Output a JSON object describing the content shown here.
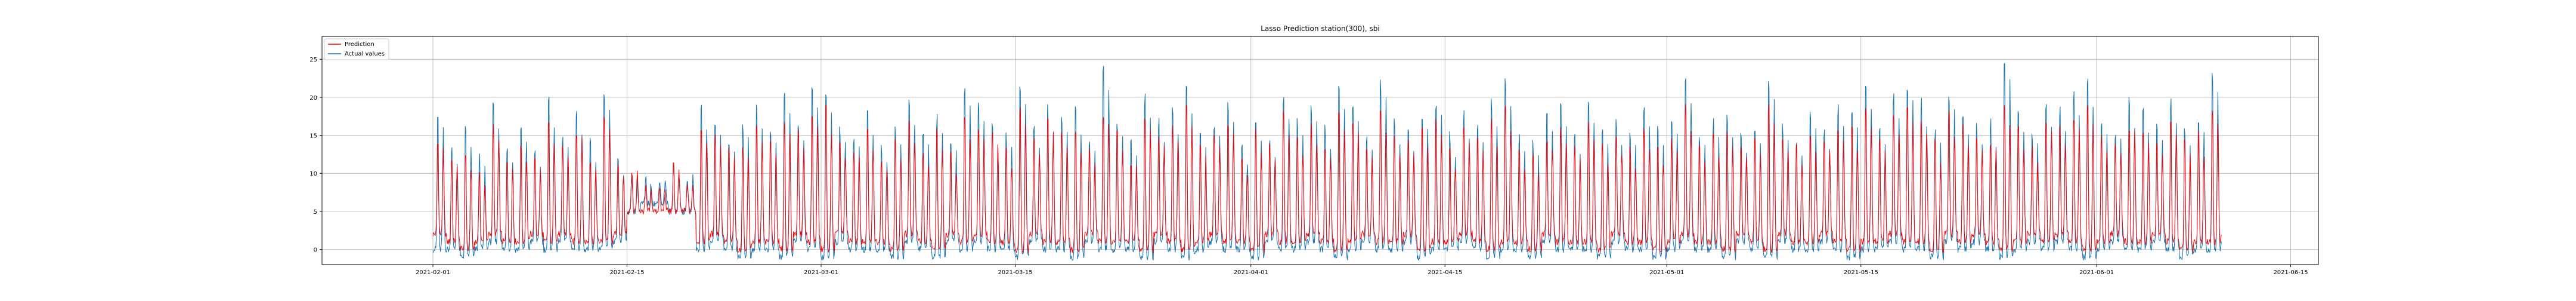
{
  "chart_data": {
    "type": "line",
    "title": "Lasso Prediction  station(300), sbi",
    "xlabel": "",
    "ylabel": "",
    "x_range": [
      "2021-01-24",
      "2021-06-17"
    ],
    "ylim": [
      -2,
      28
    ],
    "grid": true,
    "legend_placement": "top-left",
    "x_ticks": [
      "2021-02-01",
      "2021-02-15",
      "2021-03-01",
      "2021-03-15",
      "2021-04-01",
      "2021-04-15",
      "2021-05-01",
      "2021-05-15",
      "2021-06-01",
      "2021-06-15"
    ],
    "y_ticks": [
      0,
      5,
      10,
      15,
      20,
      25
    ],
    "data_start": "2021-02-01",
    "data_end": "2021-06-10",
    "series": [
      {
        "name": "Prediction",
        "color": "#ff0000",
        "daily_peak": [
          15,
          13,
          14,
          11,
          17,
          13,
          15,
          12,
          18,
          14,
          17,
          13,
          19,
          12,
          11,
          8,
          8,
          11,
          9,
          18,
          16,
          14,
          15,
          17,
          15,
          18,
          16,
          19,
          20,
          15,
          14,
          17,
          13,
          15,
          18,
          14,
          17,
          13,
          19,
          17,
          16,
          14,
          20,
          15,
          18,
          16,
          17,
          14,
          20,
          16,
          13,
          19,
          16,
          17,
          20,
          14,
          16,
          18,
          13,
          17,
          14,
          19,
          16,
          17,
          15,
          20,
          18,
          14,
          20,
          16,
          15,
          17,
          18,
          14,
          17,
          15,
          18,
          20,
          14,
          13,
          16,
          17,
          14,
          18,
          15,
          16,
          14,
          17,
          15,
          15,
          20,
          14,
          16,
          16,
          14,
          15,
          20,
          15,
          14,
          16,
          15,
          17,
          17,
          20,
          15,
          19,
          20,
          18,
          15,
          19,
          17,
          15,
          15,
          20,
          17,
          14,
          18,
          17,
          19,
          20,
          16,
          15,
          18,
          17,
          15,
          18,
          15,
          16,
          20,
          15,
          17
        ],
        "daily_trough": [
          2,
          1,
          0,
          1,
          2,
          1,
          1,
          2,
          1,
          2,
          1,
          1,
          1,
          2,
          5,
          5,
          5,
          5,
          5,
          1,
          2,
          1,
          0,
          1,
          1,
          0,
          2,
          1,
          0,
          2,
          1,
          1,
          1,
          0,
          2,
          1,
          0,
          2,
          1,
          2,
          1,
          1,
          0,
          2,
          1,
          1,
          0,
          2,
          1,
          1,
          1,
          0,
          2,
          1,
          0,
          1,
          2,
          1,
          1,
          0,
          2,
          1,
          1,
          2,
          1,
          0,
          1,
          2,
          1,
          1,
          2,
          0,
          1,
          1,
          2,
          1,
          0,
          1,
          1,
          0,
          2,
          1,
          1,
          1,
          0,
          2,
          1,
          1,
          0,
          1,
          2,
          1,
          1,
          0,
          2,
          1,
          0,
          2,
          1,
          1,
          2,
          1,
          0,
          1,
          1,
          2,
          1,
          1,
          0,
          2,
          1,
          2,
          1,
          0,
          1,
          2,
          1,
          2,
          1,
          0,
          1,
          2,
          1,
          1,
          2,
          1,
          0,
          1,
          1,
          2,
          1
        ]
      },
      {
        "name": "Actual values",
        "color": "#1f77b4",
        "daily_peak": [
          19,
          15,
          17,
          13,
          20,
          15,
          18,
          14,
          21,
          16,
          20,
          15,
          22,
          13,
          10,
          9,
          10,
          12,
          10,
          20,
          18,
          16,
          18,
          20,
          17,
          22,
          18,
          24,
          22,
          17,
          16,
          19,
          15,
          17,
          21,
          16,
          19,
          15,
          23,
          20,
          18,
          16,
          24,
          17,
          20,
          19,
          20,
          16,
          26,
          18,
          15,
          22,
          18,
          20,
          23,
          16,
          18,
          21,
          15,
          19,
          16,
          22,
          18,
          20,
          17,
          24,
          21,
          16,
          24,
          18,
          17,
          20,
          21,
          16,
          19,
          17,
          21,
          24,
          16,
          15,
          19,
          20,
          16,
          21,
          17,
          18,
          16,
          20,
          17,
          18,
          24,
          16,
          18,
          19,
          16,
          17,
          24,
          17,
          16,
          19,
          17,
          20,
          20,
          24,
          17,
          22,
          24,
          21,
          17,
          22,
          20,
          17,
          18,
          27,
          20,
          16,
          21,
          20,
          22,
          24,
          18,
          17,
          21,
          20,
          17,
          21,
          17,
          19,
          25,
          17,
          24
        ],
        "daily_trough": [
          0,
          0,
          -1,
          0,
          1,
          0,
          0,
          1,
          0,
          1,
          0,
          0,
          0,
          1,
          5,
          6,
          6,
          5,
          5,
          0,
          1,
          0,
          -1,
          0,
          0,
          -1,
          1,
          0,
          -1,
          1,
          0,
          0,
          0,
          -1,
          1,
          0,
          -1,
          1,
          0,
          1,
          0,
          0,
          -1,
          1,
          0,
          0,
          -1,
          1,
          0,
          0,
          0,
          -1,
          1,
          0,
          -1,
          0,
          1,
          0,
          0,
          -1,
          1,
          0,
          0,
          1,
          0,
          -1,
          0,
          1,
          0,
          0,
          1,
          -1,
          0,
          0,
          1,
          0,
          -1,
          0,
          0,
          -1,
          1,
          0,
          0,
          0,
          -1,
          1,
          0,
          0,
          -1,
          0,
          1,
          0,
          0,
          -1,
          1,
          0,
          -1,
          1,
          0,
          0,
          1,
          0,
          -1,
          0,
          0,
          1,
          0,
          0,
          -1,
          1,
          0,
          1,
          0,
          -1,
          0,
          1,
          0,
          1,
          0,
          -1,
          0,
          1,
          0,
          0,
          1,
          0,
          -1,
          0,
          0,
          1,
          0
        ]
      }
    ]
  }
}
